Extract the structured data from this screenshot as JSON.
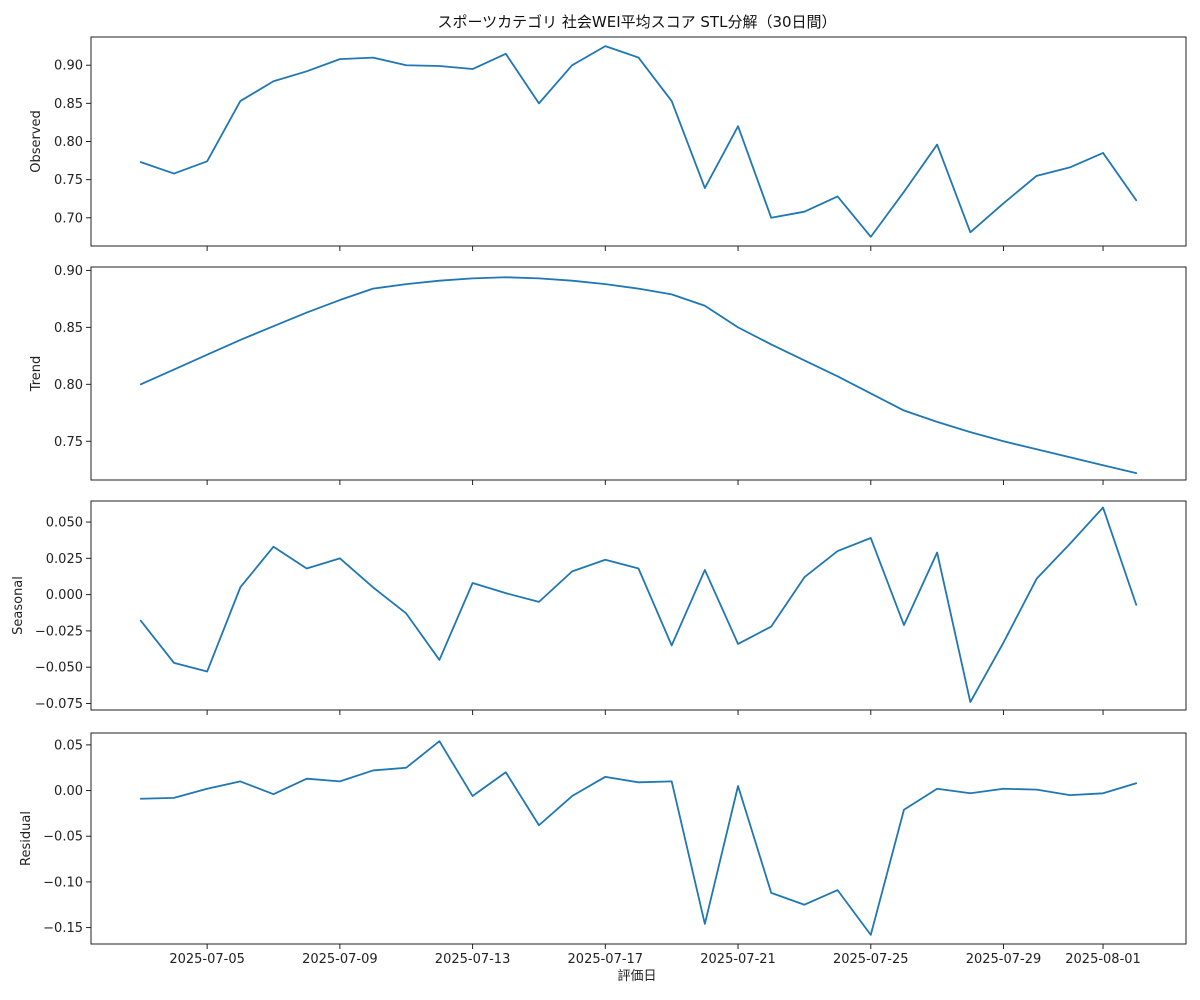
{
  "chart_data": {
    "type": "line",
    "title": "スポーツカテゴリ 社会WEI平均スコア STL分解（30日間）",
    "xlabel": "評価日",
    "x": [
      "2025-07-03",
      "2025-07-04",
      "2025-07-05",
      "2025-07-06",
      "2025-07-07",
      "2025-07-08",
      "2025-07-09",
      "2025-07-10",
      "2025-07-11",
      "2025-07-12",
      "2025-07-13",
      "2025-07-14",
      "2025-07-15",
      "2025-07-16",
      "2025-07-17",
      "2025-07-18",
      "2025-07-19",
      "2025-07-20",
      "2025-07-21",
      "2025-07-22",
      "2025-07-23",
      "2025-07-24",
      "2025-07-25",
      "2025-07-26",
      "2025-07-27",
      "2025-07-28",
      "2025-07-29",
      "2025-07-30",
      "2025-07-31",
      "2025-08-01",
      "2025-08-02"
    ],
    "x_ticks": [
      "2025-07-05",
      "2025-07-09",
      "2025-07-13",
      "2025-07-17",
      "2025-07-21",
      "2025-07-25",
      "2025-07-29",
      "2025-08-01"
    ],
    "line_color": "#1f77b4",
    "panels": [
      {
        "ylabel": "Observed",
        "ylim": [
          0.663,
          0.937
        ],
        "yticks": [
          0.7,
          0.75,
          0.8,
          0.85,
          0.9
        ],
        "ytick_labels": [
          "0.70",
          "0.75",
          "0.80",
          "0.85",
          "0.90"
        ],
        "values": [
          0.773,
          0.758,
          0.774,
          0.853,
          0.879,
          0.892,
          0.908,
          0.91,
          0.9,
          0.899,
          0.895,
          0.915,
          0.85,
          0.9,
          0.925,
          0.91,
          0.853,
          0.739,
          0.82,
          0.7,
          0.708,
          0.728,
          0.675,
          0.734,
          0.796,
          0.681,
          0.719,
          0.755,
          0.766,
          0.785,
          0.723
        ]
      },
      {
        "ylabel": "Trend",
        "ylim": [
          0.716,
          0.903
        ],
        "yticks": [
          0.75,
          0.8,
          0.85,
          0.9
        ],
        "ytick_labels": [
          "0.75",
          "0.80",
          "0.85",
          "0.90"
        ],
        "values": [
          0.8,
          0.813,
          0.826,
          0.839,
          0.851,
          0.863,
          0.874,
          0.884,
          0.888,
          0.891,
          0.893,
          0.894,
          0.893,
          0.891,
          0.888,
          0.884,
          0.879,
          0.869,
          0.85,
          0.835,
          0.821,
          0.807,
          0.792,
          0.777,
          0.767,
          0.758,
          0.75,
          0.743,
          0.736,
          0.729,
          0.722
        ]
      },
      {
        "ylabel": "Seasonal",
        "ylim": [
          -0.0795,
          0.0645
        ],
        "yticks": [
          -0.075,
          -0.05,
          -0.025,
          0.0,
          0.025,
          0.05
        ],
        "ytick_labels": [
          "−0.075",
          "−0.050",
          "−0.025",
          "0.000",
          "0.025",
          "0.050"
        ],
        "values": [
          -0.018,
          -0.047,
          -0.053,
          0.005,
          0.033,
          0.018,
          0.025,
          0.005,
          -0.013,
          -0.045,
          0.008,
          0.001,
          -0.005,
          0.016,
          0.024,
          0.018,
          -0.035,
          0.017,
          -0.034,
          -0.022,
          0.012,
          0.03,
          0.039,
          -0.021,
          0.029,
          -0.074,
          -0.033,
          0.011,
          0.035,
          0.06,
          -0.007
        ]
      },
      {
        "ylabel": "Residual",
        "ylim": [
          -0.168,
          0.063
        ],
        "yticks": [
          -0.15,
          -0.1,
          -0.05,
          0.0,
          0.05
        ],
        "ytick_labels": [
          "−0.15",
          "−0.10",
          "−0.05",
          "0.00",
          "0.05"
        ],
        "values": [
          -0.009,
          -0.008,
          0.002,
          0.01,
          -0.004,
          0.013,
          0.01,
          0.022,
          0.025,
          0.054,
          -0.006,
          0.02,
          -0.038,
          -0.006,
          0.015,
          0.009,
          0.01,
          -0.146,
          0.005,
          -0.112,
          -0.125,
          -0.109,
          -0.158,
          -0.021,
          0.002,
          -0.003,
          0.002,
          0.001,
          -0.005,
          -0.003,
          0.008
        ]
      }
    ]
  }
}
